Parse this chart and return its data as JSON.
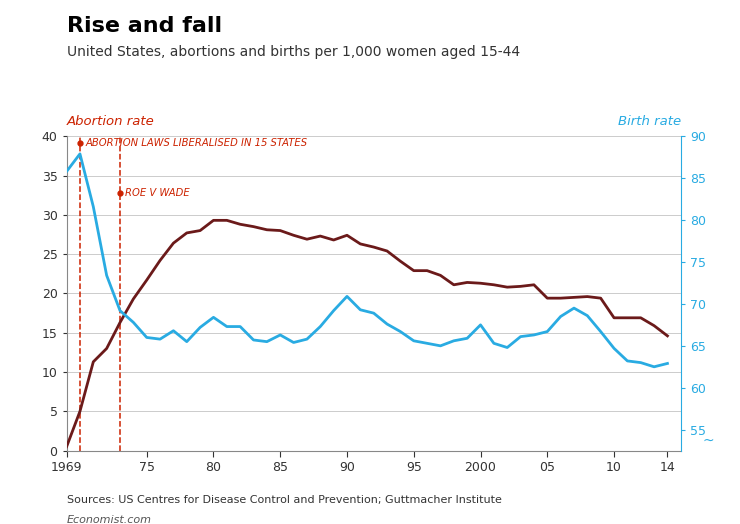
{
  "title": "Rise and fall",
  "subtitle": "United States, abortions and births per 1,000 women aged 15-44",
  "left_axis_label": "Abortion rate",
  "right_axis_label": "Birth rate",
  "source": "Sources: US Centres for Disease Control and Prevention; Guttmacher Institute",
  "branding": "Economist.com",
  "annotation1": "ABORTION LAWS LIBERALISED IN 15 STATES",
  "annotation2": "ROE V WADE",
  "vline1_x": 1970,
  "vline2_x": 1973,
  "abortion_data": {
    "years": [
      1969,
      1970,
      1971,
      1972,
      1973,
      1974,
      1975,
      1976,
      1977,
      1978,
      1979,
      1980,
      1981,
      1982,
      1983,
      1984,
      1985,
      1986,
      1987,
      1988,
      1989,
      1990,
      1991,
      1992,
      1993,
      1994,
      1995,
      1996,
      1997,
      1998,
      1999,
      2000,
      2001,
      2002,
      2003,
      2004,
      2005,
      2006,
      2007,
      2008,
      2009,
      2010,
      2011,
      2012,
      2013,
      2014
    ],
    "values": [
      0.5,
      5.0,
      11.3,
      13.0,
      16.3,
      19.3,
      21.7,
      24.2,
      26.4,
      27.7,
      28.0,
      29.3,
      29.3,
      28.8,
      28.5,
      28.1,
      28.0,
      27.4,
      26.9,
      27.3,
      26.8,
      27.4,
      26.3,
      25.9,
      25.4,
      24.1,
      22.9,
      22.9,
      22.3,
      21.1,
      21.4,
      21.3,
      21.1,
      20.8,
      20.9,
      21.1,
      19.4,
      19.4,
      19.5,
      19.6,
      19.4,
      16.9,
      16.9,
      16.9,
      15.9,
      14.6
    ]
  },
  "birth_data": {
    "years": [
      1969,
      1970,
      1971,
      1972,
      1973,
      1974,
      1975,
      1976,
      1977,
      1978,
      1979,
      1980,
      1981,
      1982,
      1983,
      1984,
      1985,
      1986,
      1987,
      1988,
      1989,
      1990,
      1991,
      1992,
      1993,
      1994,
      1995,
      1996,
      1997,
      1998,
      1999,
      2000,
      2001,
      2002,
      2003,
      2004,
      2005,
      2006,
      2007,
      2008,
      2009,
      2010,
      2011,
      2012,
      2013,
      2014
    ],
    "values": [
      85.8,
      87.9,
      81.6,
      73.4,
      69.2,
      67.8,
      66.0,
      65.8,
      66.8,
      65.5,
      67.2,
      68.4,
      67.3,
      67.3,
      65.7,
      65.5,
      66.3,
      65.4,
      65.8,
      67.3,
      69.2,
      70.9,
      69.3,
      68.9,
      67.6,
      66.7,
      65.6,
      65.3,
      65.0,
      65.6,
      65.9,
      67.5,
      65.3,
      64.8,
      66.1,
      66.3,
      66.7,
      68.5,
      69.5,
      68.6,
      66.7,
      64.7,
      63.2,
      63.0,
      62.5,
      62.9
    ]
  },
  "abortion_color": "#6b1a1a",
  "birth_color": "#29abe2",
  "annotation_color": "#cc2200",
  "vline_color": "#cc2200",
  "xlim": [
    1969,
    2015
  ],
  "ylim_left": [
    0,
    40
  ],
  "ylim_right": [
    52.5,
    90
  ],
  "xticks": [
    1969,
    1975,
    1980,
    1985,
    1990,
    1995,
    2000,
    2005,
    2010,
    2014
  ],
  "xticklabels": [
    "1969",
    "75",
    "80",
    "85",
    "90",
    "95",
    "2000",
    "05",
    "10",
    "14"
  ],
  "yticks_left": [
    0,
    5,
    10,
    15,
    20,
    25,
    30,
    35,
    40
  ],
  "yticks_right": [
    55,
    60,
    65,
    70,
    75,
    80,
    85,
    90
  ],
  "grid_color": "#cccccc",
  "spine_color": "#888888",
  "title_fontsize": 16,
  "subtitle_fontsize": 10,
  "tick_fontsize": 9,
  "label_fontsize": 9.5,
  "source_fontsize": 8,
  "vline1_ann_y": 39.2,
  "vline2_ann_y": 32.8
}
